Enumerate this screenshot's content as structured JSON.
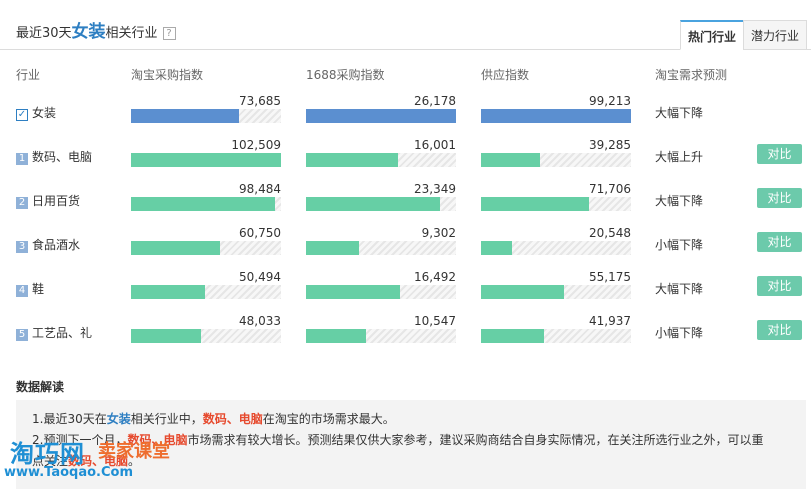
{
  "header": {
    "title_prefix": "最近30天",
    "title_highlight": "女装",
    "title_suffix": "相关行业",
    "help_glyph": "?",
    "tabs": [
      {
        "label": "热门行业",
        "active": true
      },
      {
        "label": "潜力行业",
        "active": false
      }
    ]
  },
  "columns": {
    "industry": "行业",
    "taobao": "淘宝采购指数",
    "alibaba": "1688采购指数",
    "supply": "供应指数",
    "forecast": "淘宝需求预测"
  },
  "max_values": {
    "taobao": 102509,
    "alibaba": 26178,
    "supply": 99213
  },
  "rows": [
    {
      "rank": "",
      "selected": true,
      "name": "女装",
      "taobao": 73685,
      "taobao_label": "73,685",
      "alibaba": 26178,
      "alibaba_label": "26,178",
      "supply": 99213,
      "supply_label": "99,213",
      "forecast": "大幅下降",
      "compare": ""
    },
    {
      "rank": "1",
      "selected": false,
      "name": "数码、电脑",
      "taobao": 102509,
      "taobao_label": "102,509",
      "alibaba": 16001,
      "alibaba_label": "16,001",
      "supply": 39285,
      "supply_label": "39,285",
      "forecast": "大幅上升",
      "compare": "对比"
    },
    {
      "rank": "2",
      "selected": false,
      "name": "日用百货",
      "taobao": 98484,
      "taobao_label": "98,484",
      "alibaba": 23349,
      "alibaba_label": "23,349",
      "supply": 71706,
      "supply_label": "71,706",
      "forecast": "大幅下降",
      "compare": "对比"
    },
    {
      "rank": "3",
      "selected": false,
      "name": "食品酒水",
      "taobao": 60750,
      "taobao_label": "60,750",
      "alibaba": 9302,
      "alibaba_label": "9,302",
      "supply": 20548,
      "supply_label": "20,548",
      "forecast": "小幅下降",
      "compare": "对比"
    },
    {
      "rank": "4",
      "selected": false,
      "name": "鞋",
      "taobao": 50494,
      "taobao_label": "50,494",
      "alibaba": 16492,
      "alibaba_label": "16,492",
      "supply": 55175,
      "supply_label": "55,175",
      "forecast": "大幅下降",
      "compare": "对比"
    },
    {
      "rank": "5",
      "selected": false,
      "name": "工艺品、礼",
      "taobao": 48033,
      "taobao_label": "48,033",
      "alibaba": 10547,
      "alibaba_label": "10,547",
      "supply": 41937,
      "supply_label": "41,937",
      "forecast": "小幅下降",
      "compare": "对比"
    }
  ],
  "interpretation": {
    "title": "数据解读",
    "line1": {
      "a": "1.最近30天在",
      "b": "女装",
      "c": "相关行业中，",
      "d": "数码、电脑",
      "e": "在淘宝的市场需求最大。"
    },
    "line2": {
      "a": "2.预测下一个月，",
      "b": "数码、电脑",
      "c": "市场需求有较大增长。预测结果仅供大家参考，建议采购商结合自身实际情况，在关注所选行业之外，可以重"
    },
    "line3": {
      "a": "点关注",
      "b": "数码、电脑",
      "c": "。"
    }
  },
  "watermark": {
    "brand": "淘巧网",
    "sub": "卖家课堂",
    "url": "www.Taoqao.Com"
  },
  "colors": {
    "accent_blue": "#2e7fc2",
    "bar_green": "#66cfa5",
    "bar_selected": "#5b8fd0",
    "highlight_red": "#e64a2e",
    "compare_button": "#6ccaab"
  }
}
